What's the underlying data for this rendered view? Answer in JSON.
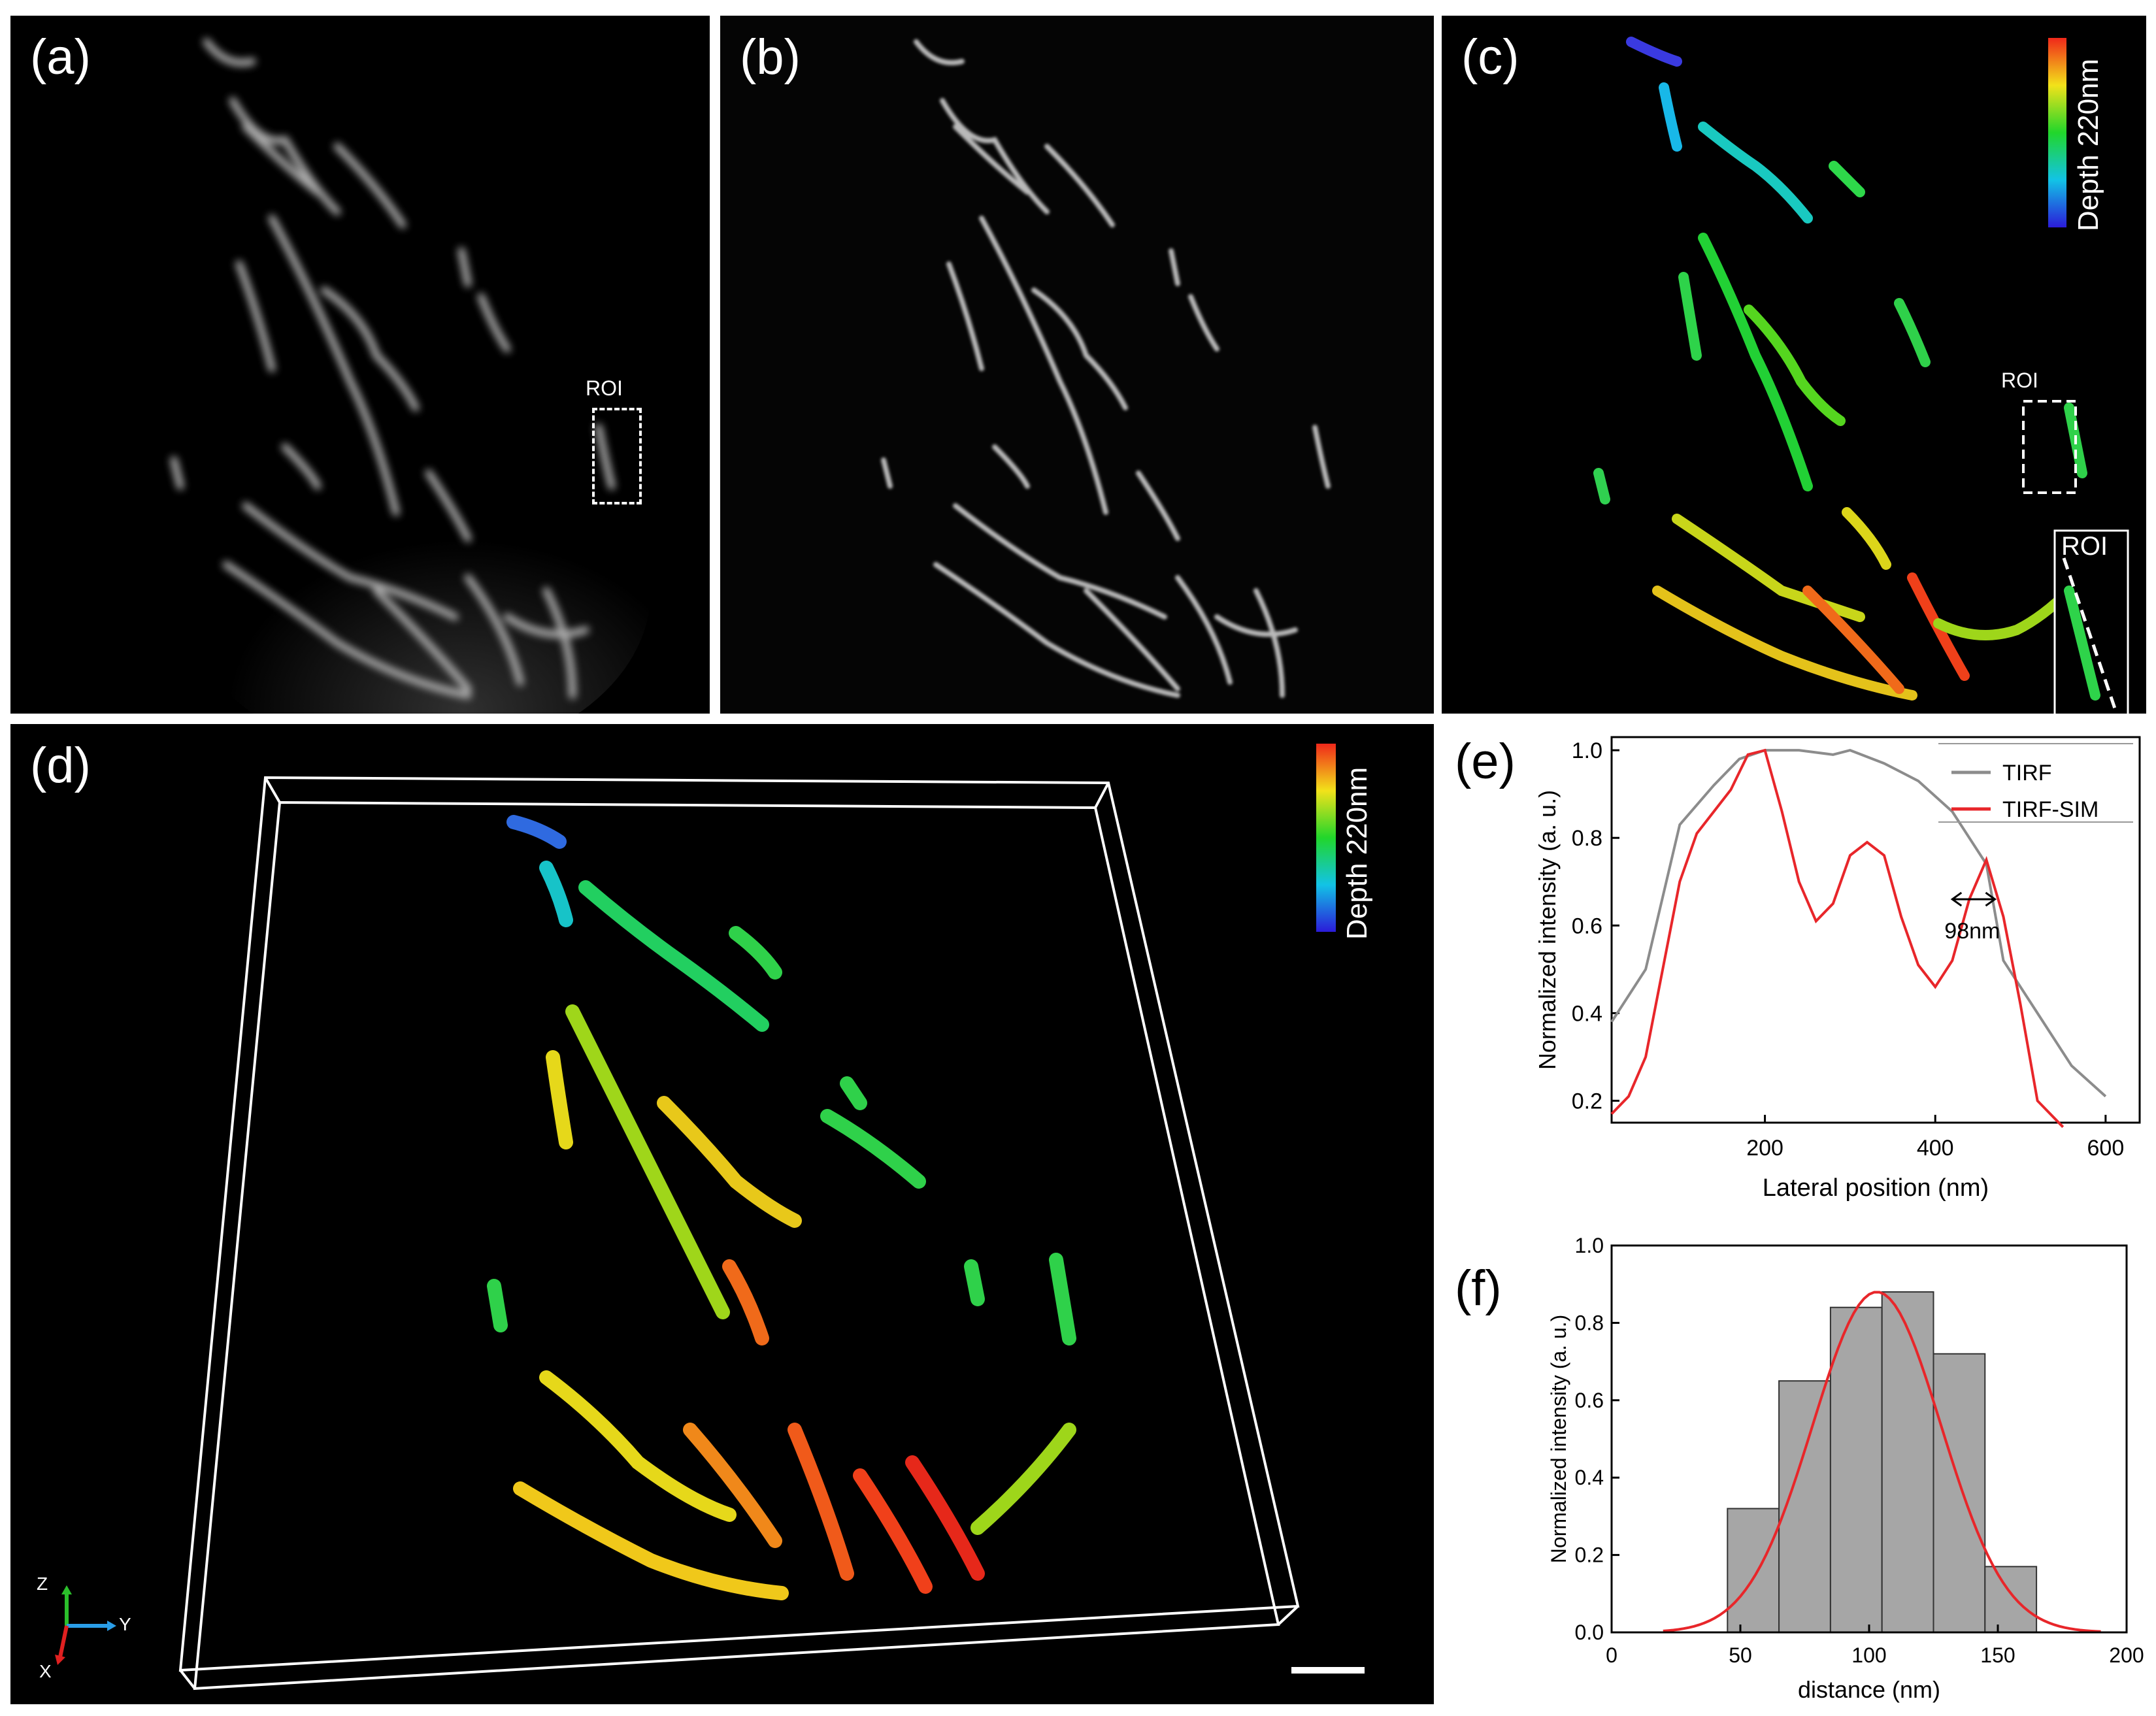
{
  "panels": {
    "a": {
      "label": "(a)",
      "roi": "ROI"
    },
    "b": {
      "label": "(b)"
    },
    "c": {
      "label": "(c)",
      "roi": "ROI",
      "inset_roi": "ROI",
      "colorbar_label": "Depth 220nm"
    },
    "d": {
      "label": "(d)",
      "colorbar_label": "Depth 220nm",
      "axes": {
        "z": "Z",
        "y": "Y",
        "x": "X"
      }
    },
    "e": {
      "label": "(e)"
    },
    "f": {
      "label": "(f)"
    }
  },
  "colors": {
    "tirf": "#8c8c8c",
    "tirf_sim": "#e8262a",
    "hist_bar": "#a6a6a6",
    "fit": "#e8262a"
  },
  "chart_data": [
    {
      "panel": "e",
      "type": "line",
      "xlabel": "Lateral position (nm)",
      "ylabel": "Normalized intensity (a. u.)",
      "xlim": [
        20,
        640
      ],
      "ylim": [
        0.15,
        1.03
      ],
      "xticks": [
        200,
        400,
        600
      ],
      "yticks": [
        0.2,
        0.4,
        0.6,
        0.8,
        1.0
      ],
      "ytick_labels": [
        "0.2",
        "0.4",
        "0.6",
        "0.8",
        "1.0"
      ],
      "legend_position": "top-right",
      "annotation": "98nm",
      "annotation_span": [
        420,
        470
      ],
      "annotation_y": 0.66,
      "series": [
        {
          "name": "TIRF",
          "x": [
            20,
            60,
            100,
            140,
            170,
            200,
            240,
            280,
            300,
            340,
            380,
            420,
            460,
            480,
            520,
            560,
            600
          ],
          "y": [
            0.38,
            0.5,
            0.83,
            0.92,
            0.98,
            1.0,
            1.0,
            0.99,
            1.0,
            0.97,
            0.93,
            0.86,
            0.74,
            0.52,
            0.4,
            0.28,
            0.21
          ]
        },
        {
          "name": "TIRF-SIM",
          "x": [
            20,
            40,
            60,
            80,
            100,
            120,
            140,
            160,
            180,
            200,
            220,
            240,
            260,
            280,
            300,
            320,
            340,
            360,
            380,
            400,
            420,
            440,
            460,
            480,
            500,
            520,
            550
          ],
          "y": [
            0.17,
            0.21,
            0.3,
            0.5,
            0.7,
            0.81,
            0.86,
            0.91,
            0.99,
            1.0,
            0.86,
            0.7,
            0.61,
            0.65,
            0.76,
            0.79,
            0.76,
            0.62,
            0.51,
            0.46,
            0.52,
            0.66,
            0.75,
            0.62,
            0.42,
            0.2,
            0.14
          ]
        }
      ]
    },
    {
      "panel": "f",
      "type": "bar",
      "xlabel": "distance (nm)",
      "ylabel": "Normalized intensity (a. u.)",
      "xlim": [
        0,
        200
      ],
      "ylim": [
        0,
        1.0
      ],
      "xticks": [
        0,
        50,
        100,
        150,
        200
      ],
      "yticks": [
        0.0,
        0.2,
        0.4,
        0.6,
        0.8,
        1.0
      ],
      "ytick_labels": [
        "0.0",
        "0.2",
        "0.4",
        "0.6",
        "0.8",
        "1.0"
      ],
      "bin_edges": [
        45,
        65,
        85,
        105,
        125,
        145,
        165
      ],
      "values": [
        0.32,
        0.65,
        0.84,
        0.88,
        0.72,
        0.17
      ],
      "fit": {
        "type": "gaussian",
        "amplitude": 0.88,
        "mean": 103,
        "sigma": 25,
        "range": [
          20,
          190
        ]
      }
    }
  ]
}
